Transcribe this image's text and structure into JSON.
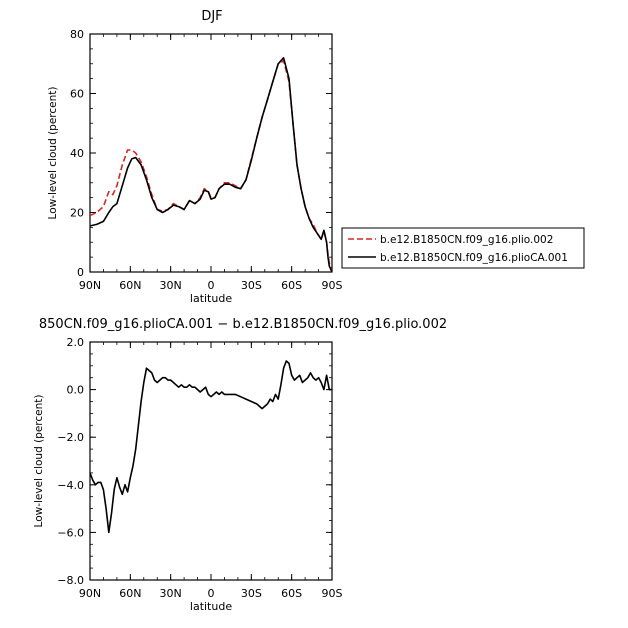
{
  "chart_data": [
    {
      "type": "line",
      "title": "DJF",
      "xlabel": "latitude",
      "ylabel": "Low-level cloud (percent)",
      "xticks": [
        "90N",
        "60N",
        "30N",
        "0",
        "30S",
        "60S",
        "90S"
      ],
      "xtick_values": [
        90,
        60,
        30,
        0,
        -30,
        -60,
        -90
      ],
      "xlim": [
        90,
        -90
      ],
      "ylim": [
        0,
        80
      ],
      "yticks": [
        "0",
        "20",
        "40",
        "60",
        "80"
      ],
      "ytick_values": [
        0,
        20,
        40,
        60,
        80
      ],
      "legend_position": "right",
      "series": [
        {
          "name": "b.e12.B1850CN.f09_g16.plio.002",
          "color": "#d62728",
          "dash": "dashed",
          "x": [
            90,
            85,
            80,
            76,
            73,
            70,
            66,
            62,
            59,
            56,
            52,
            48,
            44,
            40,
            36,
            32,
            28,
            24,
            20,
            16,
            12,
            8,
            5,
            2,
            0,
            -3,
            -6,
            -10,
            -14,
            -18,
            -22,
            -26,
            -30,
            -34,
            -38,
            -42,
            -46,
            -50,
            -54,
            -58,
            -61,
            -64,
            -67,
            -70,
            -73,
            -76,
            -79,
            -82,
            -84,
            -86,
            -87,
            -88,
            -90
          ],
          "y": [
            19,
            20,
            22,
            27,
            26,
            29,
            36,
            41,
            41,
            40,
            37,
            32,
            26,
            21,
            20.5,
            21,
            23,
            22,
            21,
            24,
            23,
            25,
            28,
            27,
            25,
            25,
            28,
            30,
            30,
            29,
            28,
            31,
            38,
            45,
            52,
            58,
            64,
            70,
            71,
            64,
            50,
            36,
            28,
            22,
            18,
            16,
            13,
            11,
            14,
            10,
            6,
            3,
            0
          ]
        },
        {
          "name": "b.e12.B1850CN.f09_g16.plioCA.001",
          "color": "#000000",
          "dash": "solid",
          "x": [
            90,
            85,
            80,
            76,
            73,
            70,
            66,
            62,
            59,
            56,
            52,
            48,
            44,
            40,
            36,
            32,
            28,
            24,
            20,
            16,
            12,
            8,
            5,
            2,
            0,
            -3,
            -6,
            -10,
            -14,
            -18,
            -22,
            -26,
            -30,
            -34,
            -38,
            -42,
            -46,
            -50,
            -54,
            -58,
            -61,
            -64,
            -67,
            -70,
            -73,
            -76,
            -79,
            -82,
            -84,
            -86,
            -87,
            -88,
            -90
          ],
          "y": [
            15.5,
            16,
            17,
            20,
            22,
            23,
            29,
            35,
            38,
            38.5,
            36,
            31,
            25,
            21,
            20,
            21,
            22.5,
            22,
            21,
            24,
            23,
            24.5,
            27.5,
            27,
            24.5,
            25,
            28,
            29.5,
            29.5,
            28.5,
            28,
            31,
            37.5,
            45,
            52,
            58,
            64,
            70,
            72,
            65,
            50,
            36,
            28,
            22,
            18,
            15,
            13,
            11,
            14,
            10,
            5,
            2,
            0
          ]
        }
      ]
    },
    {
      "type": "line",
      "title": "850CN.f09_g16.plioCA.001 − b.e12.B1850CN.f09_g16.plio.002",
      "xlabel": "latitude",
      "ylabel": "Low-level cloud (percent)",
      "xticks": [
        "90N",
        "60N",
        "30N",
        "0",
        "30S",
        "60S",
        "90S"
      ],
      "xtick_values": [
        90,
        60,
        30,
        0,
        -30,
        -60,
        -90
      ],
      "xlim": [
        90,
        -90
      ],
      "ylim": [
        -8,
        2
      ],
      "yticks": [
        "−8.0",
        "−6.0",
        "−4.0",
        "−2.0",
        "0.0",
        "2.0"
      ],
      "ytick_values": [
        -8,
        -6,
        -4,
        -2,
        0,
        2
      ],
      "series": [
        {
          "name": "",
          "color": "#000000",
          "dash": "solid",
          "x": [
            90,
            88,
            86,
            84,
            82,
            80,
            78,
            76,
            74,
            72,
            70,
            68,
            66,
            64,
            62,
            60,
            58,
            56,
            54,
            52,
            50,
            48,
            46,
            44,
            42,
            40,
            38,
            36,
            34,
            32,
            30,
            28,
            26,
            24,
            22,
            20,
            18,
            16,
            14,
            12,
            10,
            8,
            6,
            4,
            2,
            0,
            -2,
            -4,
            -6,
            -8,
            -10,
            -14,
            -18,
            -22,
            -26,
            -30,
            -34,
            -38,
            -42,
            -44,
            -46,
            -48,
            -50,
            -52,
            -54,
            -56,
            -58,
            -60,
            -62,
            -64,
            -66,
            -68,
            -70,
            -72,
            -74,
            -76,
            -78,
            -80,
            -82,
            -84,
            -86,
            -88,
            -90
          ],
          "y": [
            -3.5,
            -3.8,
            -4.0,
            -3.9,
            -3.9,
            -4.2,
            -5.0,
            -6.0,
            -5.2,
            -4.2,
            -3.7,
            -4.1,
            -4.4,
            -4.0,
            -4.3,
            -3.7,
            -3.2,
            -2.5,
            -1.5,
            -0.5,
            0.3,
            0.9,
            0.8,
            0.7,
            0.4,
            0.3,
            0.4,
            0.5,
            0.5,
            0.4,
            0.4,
            0.3,
            0.2,
            0.1,
            0.2,
            0.1,
            0.1,
            0.2,
            0.1,
            0.1,
            0.0,
            -0.1,
            0.0,
            0.1,
            -0.2,
            -0.3,
            -0.2,
            -0.1,
            -0.2,
            -0.1,
            -0.2,
            -0.2,
            -0.2,
            -0.3,
            -0.4,
            -0.5,
            -0.6,
            -0.8,
            -0.6,
            -0.4,
            -0.5,
            -0.2,
            -0.4,
            0.2,
            0.9,
            1.2,
            1.1,
            0.6,
            0.4,
            0.5,
            0.6,
            0.3,
            0.4,
            0.5,
            0.7,
            0.5,
            0.4,
            0.5,
            0.3,
            0.0,
            0.6,
            0.0,
            0.0
          ]
        }
      ]
    }
  ]
}
